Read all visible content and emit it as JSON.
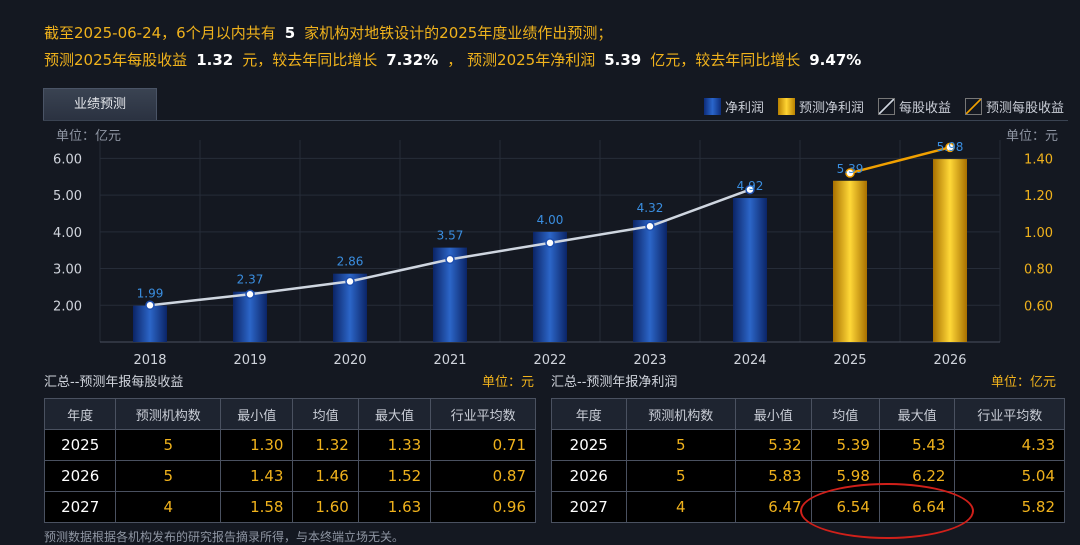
{
  "summary": {
    "line1": "截至2025-06-24，6个月以内共有",
    "line1_num": "5",
    "line1_tail": "家机构对地铁设计的2025年度业绩作出预测；",
    "l2_a": "预测2025年每股收益",
    "l2_eps": "1.32",
    "l2_b": "元，较去年同比增长",
    "l2_eps_g": "7.32%",
    "l2_c": "， 预测2025年净利润",
    "l2_np": "5.39",
    "l2_d": "亿元，较去年同比增长",
    "l2_np_g": "9.47%"
  },
  "tab": {
    "label": "业绩预测"
  },
  "legend": {
    "net_profit": "净利润",
    "forecast_net_profit": "预测净利润",
    "eps": "每股收益",
    "forecast_eps": "预测每股收益"
  },
  "units": {
    "left": "单位：亿元",
    "right": "单位：元"
  },
  "colors": {
    "accent": "#f0b21c",
    "actual_bar": "#1e4fb0",
    "forecast_bar": "#f0b000",
    "eps_line": "#cfd6e0",
    "forecast_line": "#f0a000"
  },
  "chart_data": {
    "type": "bar",
    "categories": [
      "2018",
      "2019",
      "2020",
      "2021",
      "2022",
      "2023",
      "2024",
      "2025",
      "2026"
    ],
    "series": [
      {
        "name": "净利润",
        "values": [
          1.99,
          2.37,
          2.86,
          3.57,
          4.0,
          4.32,
          4.92,
          null,
          null
        ]
      },
      {
        "name": "预测净利润",
        "values": [
          null,
          null,
          null,
          null,
          null,
          null,
          null,
          5.39,
          5.98
        ]
      },
      {
        "name": "每股收益",
        "values": [
          0.6,
          0.66,
          0.73,
          0.85,
          0.94,
          1.03,
          1.23,
          null,
          null
        ]
      },
      {
        "name": "预测每股收益",
        "values": [
          null,
          null,
          null,
          null,
          null,
          null,
          1.23,
          1.32,
          1.46
        ]
      }
    ],
    "bar_labels": [
      "1.99",
      "2.37",
      "2.86",
      "3.57",
      "4.00",
      "4.32",
      "4.92",
      "5.39",
      "5.98"
    ],
    "ylim": [
      1.0,
      6.5
    ],
    "yticks": [
      "2.00",
      "3.00",
      "4.00",
      "5.00",
      "6.00"
    ],
    "y2lim": [
      0.4,
      1.5
    ],
    "y2ticks": [
      "0.60",
      "0.80",
      "1.00",
      "1.20",
      "1.40"
    ],
    "ylabel": "单位：亿元",
    "y2label": "单位：元"
  },
  "eps_panel": {
    "title": "汇总--预测年报每股收益",
    "unit": "单位：元",
    "headers": [
      "年度",
      "预测机构数",
      "最小值",
      "均值",
      "最大值",
      "行业平均数"
    ],
    "rows": [
      [
        "2025",
        "5",
        "1.30",
        "1.32",
        "1.33",
        "0.71"
      ],
      [
        "2026",
        "5",
        "1.43",
        "1.46",
        "1.52",
        "0.87"
      ],
      [
        "2027",
        "4",
        "1.58",
        "1.60",
        "1.63",
        "0.96"
      ]
    ]
  },
  "np_panel": {
    "title": "汇总--预测年报净利润",
    "unit": "单位：亿元",
    "headers": [
      "年度",
      "预测机构数",
      "最小值",
      "均值",
      "最大值",
      "行业平均数"
    ],
    "rows": [
      [
        "2025",
        "5",
        "5.32",
        "5.39",
        "5.43",
        "4.33"
      ],
      [
        "2026",
        "5",
        "5.83",
        "5.98",
        "6.22",
        "5.04"
      ],
      [
        "2027",
        "4",
        "6.47",
        "6.54",
        "6.64",
        "5.82"
      ]
    ]
  },
  "footer": "预测数据根据各机构发布的研究报告摘录所得，与本终端立场无关。"
}
